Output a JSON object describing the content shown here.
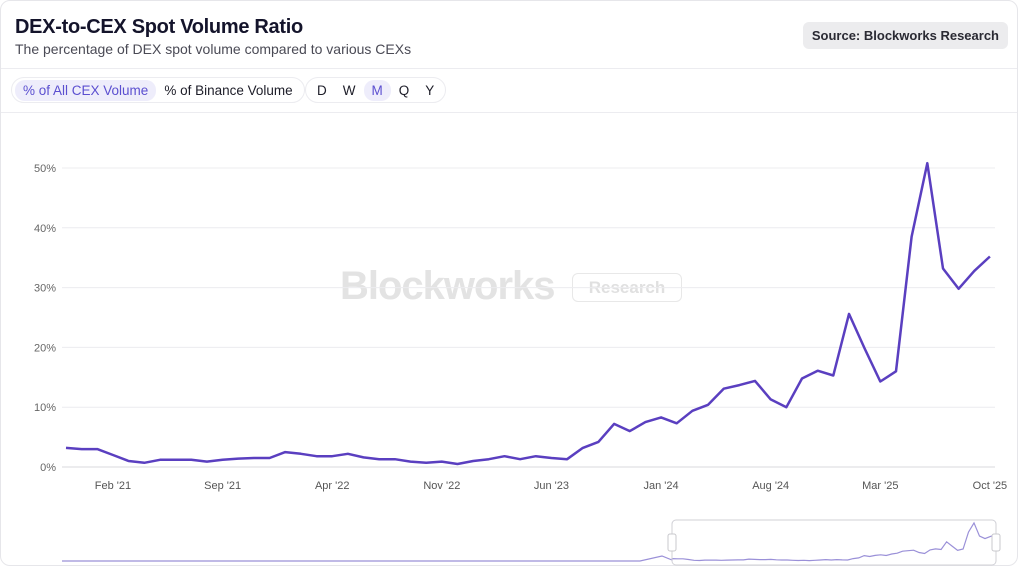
{
  "header": {
    "title": "DEX-to-CEX Spot Volume Ratio",
    "subtitle": "The percentage of DEX spot volume compared to various CEXs",
    "source": "Source: Blockworks Research"
  },
  "toggles": {
    "metric": [
      {
        "label": "% of All CEX Volume",
        "active": true
      },
      {
        "label": "% of Binance Volume",
        "active": false
      }
    ],
    "interval": [
      {
        "label": "D",
        "active": false
      },
      {
        "label": "W",
        "active": false
      },
      {
        "label": "M",
        "active": true
      },
      {
        "label": "Q",
        "active": false
      },
      {
        "label": "Y",
        "active": false
      }
    ]
  },
  "watermark": {
    "brand": "Blockworks",
    "tag": "Research"
  },
  "chart_data": {
    "type": "line",
    "title": "DEX-to-CEX Spot Volume Ratio",
    "x_start": "2020-11",
    "x_end": "2025-10",
    "frequency": "monthly",
    "x_ticks": [
      "Feb '21",
      "Sep '21",
      "Apr '22",
      "Nov '22",
      "Jun '23",
      "Jan '24",
      "Aug '24",
      "Mar '25",
      "Oct '25"
    ],
    "y_ticks": [
      "0%",
      "10%",
      "20%",
      "30%",
      "40%",
      "50%"
    ],
    "ylim": [
      0,
      55
    ],
    "grid": true,
    "color": "#5a3fc0",
    "series": [
      {
        "values": [
          3.2,
          3.0,
          3.0,
          2.0,
          1.0,
          0.7,
          1.2,
          1.2,
          1.2,
          0.9,
          1.2,
          1.4,
          1.5,
          1.5,
          2.5,
          2.2,
          1.8,
          1.8,
          2.2,
          1.6,
          1.3,
          1.3,
          0.9,
          0.7,
          0.9,
          0.5,
          1.0,
          1.3,
          1.8,
          1.3,
          1.8,
          1.5,
          1.3,
          3.2,
          4.2,
          7.2,
          6.0,
          7.5,
          8.3,
          7.3,
          9.4,
          10.4,
          13.1,
          13.7,
          14.4,
          11.3,
          10.0,
          14.8,
          16.1,
          15.3,
          25.6,
          19.8,
          14.3,
          16.0,
          38.5,
          50.8,
          33.2,
          29.8,
          32.8,
          35.2
        ]
      }
    ]
  }
}
